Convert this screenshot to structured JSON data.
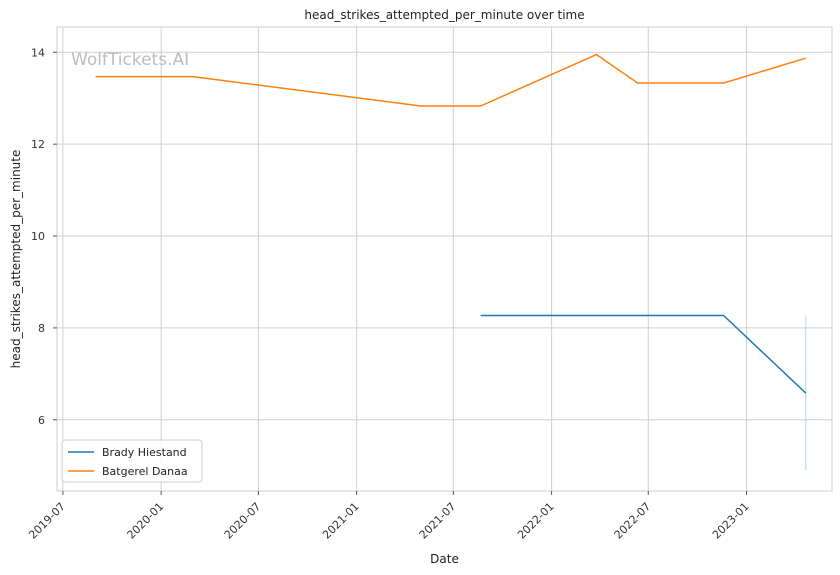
{
  "chart_data": {
    "type": "line",
    "title": "head_strikes_attempted_per_minute over time",
    "xlabel": "Date",
    "ylabel": "head_strikes_attempted_per_minute",
    "watermark": "WolfTickets.AI",
    "x_ticks": [
      "2019-07",
      "2020-01",
      "2020-07",
      "2021-01",
      "2021-07",
      "2022-01",
      "2022-07",
      "2023-01"
    ],
    "y_ticks": [
      6,
      8,
      10,
      12,
      14
    ],
    "xlim": [
      "2019-06-20",
      "2023-06-10"
    ],
    "ylim": [
      4.45,
      14.55
    ],
    "grid": true,
    "legend_position": "lower-left",
    "series": [
      {
        "name": "Brady Hiestand",
        "color": "#1f77b4",
        "points": [
          {
            "x": "2021-08-21",
            "y": 8.27
          },
          {
            "x": "2022-11-19",
            "y": 8.27
          },
          {
            "x": "2023-04-22",
            "y": 6.58
          }
        ]
      },
      {
        "name": "Batgerel Danaa",
        "color": "#ff7f0e",
        "points": [
          {
            "x": "2019-08-31",
            "y": 13.47
          },
          {
            "x": "2020-02-29",
            "y": 13.47
          },
          {
            "x": "2021-05-01",
            "y": 12.83
          },
          {
            "x": "2021-08-21",
            "y": 12.83
          },
          {
            "x": "2022-03-26",
            "y": 13.95
          },
          {
            "x": "2022-06-11",
            "y": 13.33
          },
          {
            "x": "2022-11-19",
            "y": 13.33
          },
          {
            "x": "2023-04-22",
            "y": 13.87
          }
        ]
      }
    ],
    "range_band": {
      "x": "2023-04-22",
      "y_min": 4.9,
      "y_max": 8.27,
      "color": "#9ecae1"
    }
  }
}
